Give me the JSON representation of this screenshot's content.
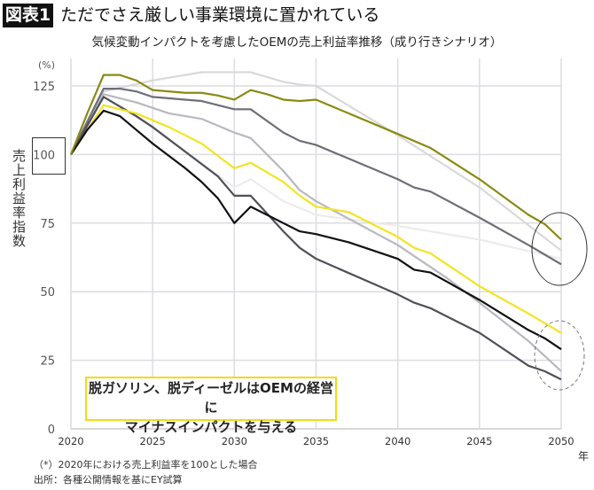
{
  "header": {
    "badge": "図表1",
    "title": "ただでさえ厳しい事業環境に置かれている"
  },
  "chart_data": {
    "type": "line",
    "title": "気候変動インパクトを考慮したOEMの売上利益率推移（成り行きシナリオ）",
    "ylabel": "売上利益率指数",
    "yunit": "(%)",
    "xunit": "年",
    "xlim": [
      2020,
      2050
    ],
    "ylim": [
      0,
      135
    ],
    "xticks": [
      2020,
      2025,
      2030,
      2035,
      2040,
      2045,
      2050
    ],
    "yticks": [
      0,
      25,
      50,
      75,
      100,
      125
    ],
    "grid": true,
    "highlighted_ytick": 100,
    "series": [
      {
        "color": "#ececec",
        "x": [
          2020,
          2022,
          2025,
          2030,
          2031,
          2033,
          2035,
          2040,
          2045,
          2050
        ],
        "y": [
          100,
          121,
          110,
          88,
          91,
          83,
          78,
          74,
          69,
          62
        ]
      },
      {
        "color": "#d9d9db",
        "x": [
          2020,
          2022,
          2025,
          2027,
          2028,
          2030,
          2031,
          2033,
          2034,
          2035,
          2040,
          2045,
          2050
        ],
        "y": [
          100,
          123,
          127,
          129,
          130,
          130,
          130,
          126.5,
          125.5,
          125,
          107,
          88,
          65
        ]
      },
      {
        "color": "#b8b8c0",
        "x": [
          2020,
          2022,
          2024,
          2026,
          2028,
          2030,
          2031,
          2033,
          2034,
          2035,
          2040,
          2043,
          2045,
          2048,
          2050
        ],
        "y": [
          100,
          122,
          119,
          115,
          113,
          108,
          106,
          94,
          87,
          83,
          67,
          55,
          46,
          32,
          21
        ]
      },
      {
        "color": "#6e6e78",
        "x": [
          2020,
          2022,
          2023,
          2024,
          2025,
          2027,
          2028,
          2029,
          2030,
          2031,
          2033,
          2034,
          2035,
          2040,
          2041,
          2042,
          2045,
          2048,
          2050
        ],
        "y": [
          100,
          124,
          124,
          123,
          121,
          120,
          119.5,
          118,
          116.5,
          116.5,
          108,
          105,
          103.5,
          91,
          88,
          86.5,
          77,
          67,
          60
        ]
      },
      {
        "color": "#505058",
        "x": [
          2020,
          2022,
          2024,
          2025,
          2027,
          2029,
          2030,
          2031,
          2033,
          2034,
          2035,
          2040,
          2041,
          2042,
          2045,
          2048,
          2049,
          2050
        ],
        "y": [
          100,
          121,
          114,
          110,
          101,
          92,
          85,
          85,
          72,
          66,
          62,
          49,
          46,
          44,
          35,
          23,
          21,
          18
        ]
      },
      {
        "color": "#f2e422",
        "x": [
          2020,
          2022,
          2024,
          2026,
          2028,
          2030,
          2031,
          2033,
          2034,
          2035,
          2037,
          2040,
          2041,
          2042,
          2045,
          2048,
          2050
        ],
        "y": [
          100,
          118,
          115,
          110,
          104,
          95,
          97,
          90,
          85,
          81,
          79,
          70,
          66,
          64,
          52,
          42,
          35
        ]
      },
      {
        "color": "#111111",
        "x": [
          2020,
          2021,
          2022,
          2023,
          2024,
          2025,
          2027,
          2028,
          2029,
          2030,
          2031,
          2032,
          2033,
          2034,
          2035,
          2037,
          2040,
          2041,
          2042,
          2045,
          2048,
          2049,
          2050
        ],
        "y": [
          100,
          109,
          116,
          114,
          109,
          104,
          95,
          90,
          84,
          75,
          81,
          78,
          75,
          72,
          71,
          68,
          62,
          58,
          57,
          47,
          36,
          33,
          29
        ]
      },
      {
        "color": "#8a8a14",
        "x": [
          2020,
          2021,
          2022,
          2023,
          2024,
          2025,
          2027,
          2028,
          2029,
          2030,
          2031,
          2032,
          2033,
          2034,
          2035,
          2040,
          2042,
          2045,
          2048,
          2049,
          2050
        ],
        "y": [
          100,
          115,
          129,
          129,
          127,
          123.5,
          122.5,
          122.5,
          121.5,
          120,
          123.5,
          122,
          120,
          119.5,
          120,
          107.5,
          102.4,
          91,
          78,
          74.6,
          69
        ]
      }
    ],
    "annotation": "脱ガソリン、脱ディーゼルはOEMの経営に マイナスインパクトを与える"
  },
  "annotation": {
    "line1": "脱ガソリン、脱ディーゼルはOEMの経営に",
    "line2": "マイナスインパクトを与える"
  },
  "footer": {
    "note": "（*）2020年における売上利益率を100とした場合",
    "source": "出所：各種公開情報を基にEY試算"
  }
}
